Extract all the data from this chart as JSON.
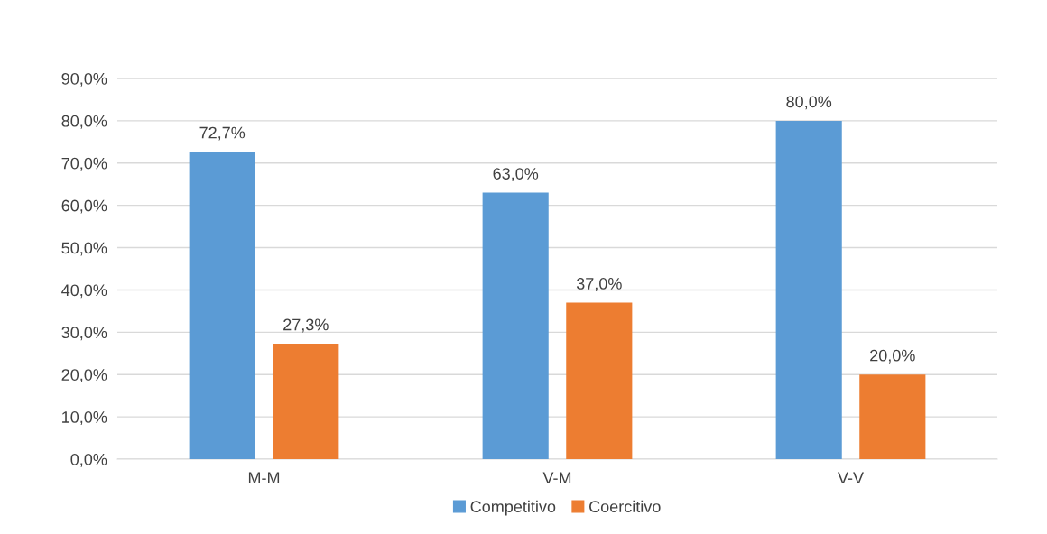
{
  "chart_data": {
    "type": "bar",
    "categories": [
      "M-M",
      "V-M",
      "V-V"
    ],
    "series": [
      {
        "name": "Competitivo",
        "color": "#5b9bd5",
        "values": [
          72.7,
          63.0,
          80.0
        ],
        "value_labels": [
          "72,7%",
          "63,0%",
          "80,0%"
        ]
      },
      {
        "name": "Coercitivo",
        "color": "#ed7d31",
        "values": [
          27.3,
          37.0,
          20.0
        ],
        "value_labels": [
          "27,3%",
          "37,0%",
          "20,0%"
        ]
      }
    ],
    "ylim": [
      0,
      90
    ],
    "yticks": [
      {
        "value": 0,
        "label": "0,0%"
      },
      {
        "value": 10,
        "label": "10,0%"
      },
      {
        "value": 20,
        "label": "20,0%"
      },
      {
        "value": 30,
        "label": "30,0%"
      },
      {
        "value": 40,
        "label": "40,0%"
      },
      {
        "value": 50,
        "label": "50,0%"
      },
      {
        "value": 60,
        "label": "60,0%"
      },
      {
        "value": 70,
        "label": "70,0%"
      },
      {
        "value": 80,
        "label": "80,0%"
      },
      {
        "value": 90,
        "label": "90,0%"
      }
    ],
    "grid": "y",
    "legend": "bottom"
  }
}
